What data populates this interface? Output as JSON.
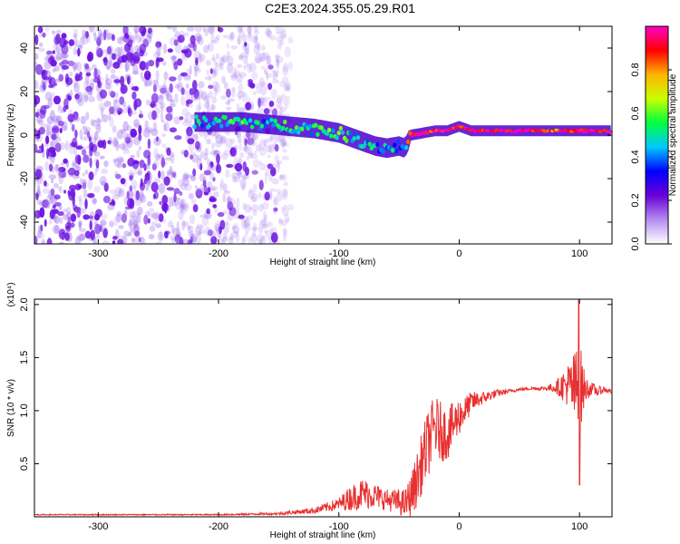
{
  "title": "C2E3.2024.355.05.29.R01",
  "colors": {
    "noise": "#7a3ae0",
    "snr_line": "#e83030",
    "colorbar": [
      "#ffffff",
      "#b48cf0",
      "#6a00d8",
      "#0000ff",
      "#00c8ff",
      "#00ff40",
      "#c8ff00",
      "#ffb400",
      "#ff0000",
      "#ff00c8"
    ]
  },
  "chart_data": [
    {
      "type": "heatmap",
      "name": "spectrogram",
      "xlabel": "Height of straight line (km)",
      "ylabel": "Frequency (Hz)",
      "xlim": [
        -353,
        127
      ],
      "ylim": [
        -50,
        50
      ],
      "x_ticks": [
        -300,
        -200,
        -100,
        0,
        100
      ],
      "y_ticks": [
        -40,
        -20,
        0,
        20,
        40
      ],
      "grid": false,
      "noise_extent_km": [
        -353,
        -140
      ],
      "ridge": {
        "x": [
          -220,
          -200,
          -180,
          -160,
          -140,
          -120,
          -100,
          -90,
          -80,
          -70,
          -60,
          -50,
          -45,
          -40,
          -30,
          -20,
          -10,
          0,
          10,
          20,
          40,
          60,
          80,
          100,
          127
        ],
        "y": [
          6,
          6,
          6,
          5,
          4,
          3,
          1,
          -1,
          -3,
          -5,
          -6,
          -5,
          -6,
          0,
          1,
          2,
          2,
          4,
          2,
          2,
          2,
          2,
          2,
          2,
          2
        ],
        "amplitude": [
          0.45,
          0.5,
          0.5,
          0.45,
          0.5,
          0.5,
          0.55,
          0.5,
          0.5,
          0.45,
          0.4,
          0.45,
          0.5,
          0.9,
          0.95,
          0.9,
          0.95,
          0.9,
          0.95,
          0.95,
          0.95,
          0.95,
          0.85,
          0.95,
          0.95
        ]
      },
      "colorbar": {
        "label": "Normalized spectral amplitude",
        "range": [
          0,
          1
        ],
        "ticks": [
          "0.0",
          "0.2",
          "0.4",
          "0.6",
          "0.8"
        ]
      }
    },
    {
      "type": "line",
      "name": "snr",
      "xlabel": "Height of straight line (km)",
      "ylabel": "SNR (10 * v/v)",
      "multiplier_label": "(x10⁴)",
      "xlim": [
        -353,
        127
      ],
      "ylim": [
        0,
        2.05
      ],
      "x_ticks": [
        -300,
        -200,
        -100,
        0,
        100
      ],
      "y_ticks": [
        0.5,
        1.0,
        1.5,
        2.0
      ],
      "grid": false,
      "series": [
        {
          "x": [
            -353,
            -300,
            -250,
            -200,
            -150,
            -120,
            -100,
            -90,
            -80,
            -70,
            -60,
            -50,
            -45,
            -40,
            -35,
            -30,
            -25,
            -20,
            -15,
            -10,
            -5,
            0,
            5,
            10,
            20,
            30,
            40,
            50,
            60,
            70,
            80,
            90,
            95,
            100,
            105,
            110,
            115,
            120,
            127
          ],
          "y": [
            0.02,
            0.02,
            0.02,
            0.02,
            0.03,
            0.06,
            0.12,
            0.18,
            0.22,
            0.2,
            0.16,
            0.14,
            0.12,
            0.2,
            0.35,
            0.55,
            0.72,
            0.85,
            0.8,
            0.78,
            0.86,
            0.95,
            1.0,
            1.08,
            1.12,
            1.16,
            1.18,
            1.2,
            1.21,
            1.21,
            1.22,
            1.24,
            1.2,
            1.22,
            1.2,
            1.21,
            1.18,
            1.2,
            1.18
          ],
          "noise_amplitude": [
            0.005,
            0.005,
            0.005,
            0.006,
            0.012,
            0.03,
            0.06,
            0.12,
            0.15,
            0.12,
            0.1,
            0.12,
            0.14,
            0.2,
            0.26,
            0.3,
            0.32,
            0.3,
            0.28,
            0.25,
            0.22,
            0.18,
            0.14,
            0.1,
            0.06,
            0.04,
            0.02,
            0.015,
            0.015,
            0.02,
            0.05,
            0.2,
            0.35,
            0.45,
            0.12,
            0.06,
            0.05,
            0.03,
            0.02
          ]
        }
      ]
    }
  ]
}
